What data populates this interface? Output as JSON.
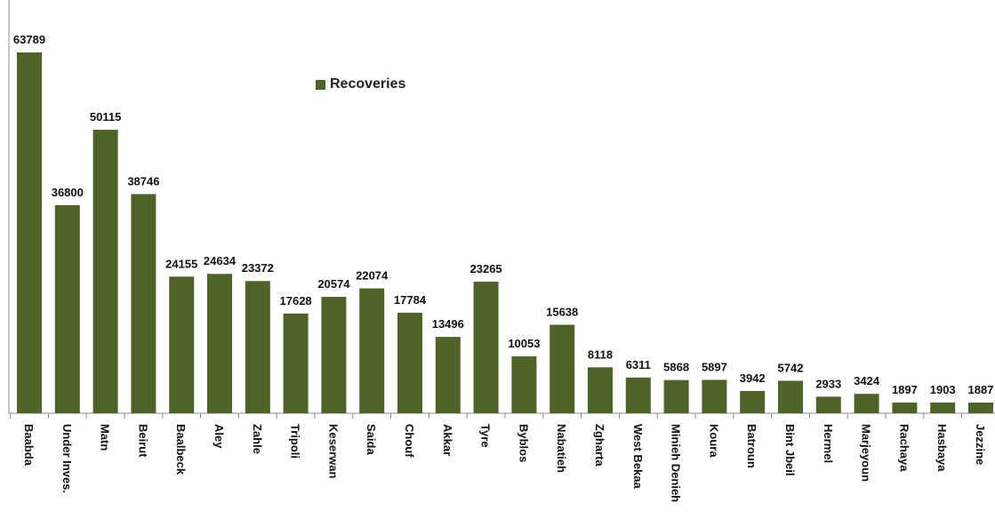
{
  "chart_data": {
    "type": "bar",
    "categories": [
      "Baabda",
      "Under Inves.",
      "Matn",
      "Beirut",
      "Baalbeck",
      "Aley",
      "Zahle",
      "Tripoli",
      "Keserwan",
      "Saida",
      "Chouf",
      "Akkar",
      "Tyre",
      "Byblos",
      "Nabatieh",
      "Zgharta",
      "West Bekaa",
      "Minieh Denieh",
      "Koura",
      "Batroun",
      "Bint Jbeil",
      "Hermel",
      "Marjeyoun",
      "Rachaya",
      "Hasbaya",
      "Jezzine"
    ],
    "series": [
      {
        "name": "Recoveries",
        "values": [
          63789,
          36800,
          50115,
          38746,
          24155,
          24634,
          23372,
          17628,
          20574,
          22074,
          17784,
          13496,
          23265,
          10053,
          15638,
          8118,
          6311,
          5868,
          5897,
          3942,
          5742,
          2933,
          3424,
          1897,
          1903,
          1887
        ]
      }
    ],
    "value_labels": [
      "63789",
      "36800",
      "50115",
      "38746",
      "24155",
      "24634",
      "23372",
      "17628",
      "20574",
      "22074",
      "17784",
      "13496",
      "23265",
      "10053",
      "15638",
      "8118",
      "6311",
      "5868",
      "5897",
      "3942",
      "5742",
      "2933",
      "3424",
      "1897",
      "1903",
      "1887"
    ],
    "ylim": [
      0,
      64500
    ],
    "grid": false,
    "legend_position": "top-center",
    "bar_color": "#4f6228"
  }
}
